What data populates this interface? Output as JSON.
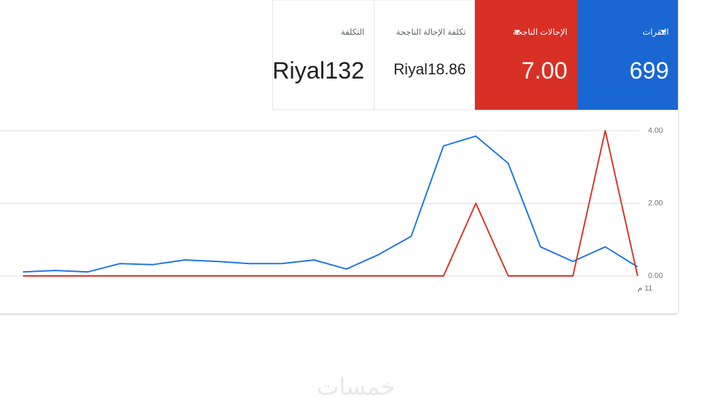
{
  "cards": [
    {
      "title": "النقرات",
      "value": "699"
    },
    {
      "title": "الإحالات الناجحة",
      "value": "7.00"
    },
    {
      "title": "تكلفة الإحالة الناجحة",
      "value": "Riyal18.86"
    },
    {
      "title": "التكلفة",
      "value": "Riyal132"
    }
  ],
  "chart_data": {
    "type": "line",
    "categories": [
      null,
      null,
      null,
      null,
      null,
      null,
      null,
      null,
      null,
      null,
      null,
      null,
      null,
      null,
      null,
      null,
      null,
      null,
      null,
      "11 م"
    ],
    "series": [
      {
        "name": "النقرات",
        "color": "#1a73e8",
        "values": [
          0.11,
          0.15,
          0.11,
          0.34,
          0.31,
          0.44,
          0.4,
          0.34,
          0.34,
          0.44,
          0.19,
          0.59,
          1.09,
          3.58,
          3.85,
          3.1,
          0.8,
          0.4,
          0.8,
          0.25
        ]
      },
      {
        "name": "الإحالات الناجحة",
        "color": "#d93025",
        "values": [
          0,
          0,
          0,
          0,
          0,
          0,
          0,
          0,
          0,
          0,
          0,
          0,
          0,
          0,
          2,
          0,
          0,
          0,
          4,
          0
        ]
      }
    ],
    "ylim": [
      0,
      4
    ],
    "yticks": [
      {
        "value": 0,
        "label": "0.00"
      },
      {
        "value": 2,
        "label": "2.00"
      },
      {
        "value": 4,
        "label": "4.00"
      }
    ],
    "grid": true
  },
  "watermark": "خمسات"
}
